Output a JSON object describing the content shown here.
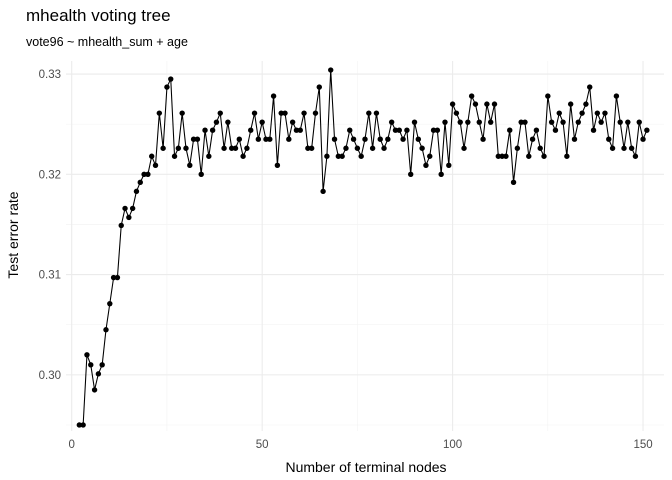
{
  "chart_data": {
    "type": "line",
    "title": "mhealth voting tree",
    "subtitle": "vote96 ~ mhealth_sum + age",
    "xlabel": "Number of terminal nodes",
    "ylabel": "Test error rate",
    "xlim": [
      -1.5,
      155.5
    ],
    "ylim": [
      0.2944,
      0.3313
    ],
    "x_ticks": [
      0,
      50,
      100,
      150
    ],
    "x_tick_labels": [
      "0",
      "50",
      "100",
      "150"
    ],
    "y_ticks": [
      0.3,
      0.31,
      0.32,
      0.33
    ],
    "y_tick_labels": [
      "0.30",
      "0.31",
      "0.32",
      "0.33"
    ],
    "grid": true,
    "series": [
      {
        "x": [
          2,
          3,
          4,
          5,
          6,
          7,
          8,
          9,
          10,
          11,
          12,
          13,
          14,
          15,
          16,
          17,
          18,
          19,
          20,
          21,
          22,
          23,
          24,
          25,
          26,
          27,
          28,
          29,
          30,
          31,
          32,
          33,
          34,
          35,
          36,
          37,
          38,
          39,
          40,
          41,
          42,
          43,
          44,
          45,
          46,
          47,
          48,
          49,
          50,
          51,
          52,
          53,
          54,
          55,
          56,
          57,
          58,
          59,
          60,
          61,
          62,
          63,
          64,
          65,
          66,
          67,
          68,
          69,
          70,
          71,
          72,
          73,
          74,
          75,
          76,
          77,
          78,
          79,
          80,
          81,
          82,
          83,
          84,
          85,
          86,
          87,
          88,
          89,
          90,
          91,
          92,
          93,
          94,
          95,
          96,
          97,
          98,
          99,
          100,
          101,
          102,
          103,
          104,
          105,
          106,
          107,
          108,
          109,
          110,
          111,
          112,
          113,
          114,
          115,
          116,
          117,
          118,
          119,
          120,
          121,
          122,
          123,
          124,
          125,
          126,
          127,
          128,
          129,
          130,
          131,
          132,
          133,
          134,
          135,
          136,
          137,
          138,
          139,
          140,
          141,
          142,
          143,
          144,
          145,
          146,
          147,
          148,
          149,
          150,
          151
        ],
        "y": [
          0.295,
          0.295,
          0.302,
          0.301,
          0.2985,
          0.3001,
          0.301,
          0.3045,
          0.3071,
          0.3097,
          0.3097,
          0.3149,
          0.3166,
          0.3157,
          0.3166,
          0.3183,
          0.3192,
          0.32,
          0.32,
          0.3218,
          0.3209,
          0.3261,
          0.3226,
          0.3287,
          0.3295,
          0.3218,
          0.3226,
          0.3261,
          0.3226,
          0.3209,
          0.3235,
          0.3235,
          0.32,
          0.3244,
          0.3218,
          0.3244,
          0.3252,
          0.3261,
          0.3226,
          0.3252,
          0.3226,
          0.3226,
          0.3235,
          0.3218,
          0.3226,
          0.3244,
          0.3261,
          0.3235,
          0.3252,
          0.3235,
          0.3235,
          0.3278,
          0.3209,
          0.3261,
          0.3261,
          0.3235,
          0.3252,
          0.3244,
          0.3244,
          0.3261,
          0.3226,
          0.3226,
          0.3261,
          0.3287,
          0.3183,
          0.3218,
          0.3304,
          0.3235,
          0.3218,
          0.3218,
          0.3226,
          0.3244,
          0.3235,
          0.3226,
          0.3218,
          0.3235,
          0.3261,
          0.3226,
          0.3261,
          0.3235,
          0.3226,
          0.3235,
          0.3252,
          0.3244,
          0.3244,
          0.3235,
          0.3244,
          0.32,
          0.3252,
          0.3235,
          0.3226,
          0.3209,
          0.3218,
          0.3244,
          0.3244,
          0.32,
          0.3252,
          0.3209,
          0.327,
          0.3261,
          0.3252,
          0.3226,
          0.3252,
          0.3278,
          0.327,
          0.3252,
          0.3235,
          0.327,
          0.3252,
          0.327,
          0.3218,
          0.3218,
          0.3218,
          0.3244,
          0.3192,
          0.3226,
          0.3252,
          0.3252,
          0.3218,
          0.3235,
          0.3244,
          0.3226,
          0.3218,
          0.3278,
          0.3252,
          0.3244,
          0.3261,
          0.3252,
          0.3218,
          0.327,
          0.3235,
          0.3252,
          0.3261,
          0.327,
          0.3287,
          0.3244,
          0.3261,
          0.3252,
          0.3261,
          0.3235,
          0.3226,
          0.3278,
          0.3252,
          0.3226,
          0.3252,
          0.3226,
          0.3218,
          0.3252,
          0.3235,
          0.3244
        ]
      }
    ]
  }
}
